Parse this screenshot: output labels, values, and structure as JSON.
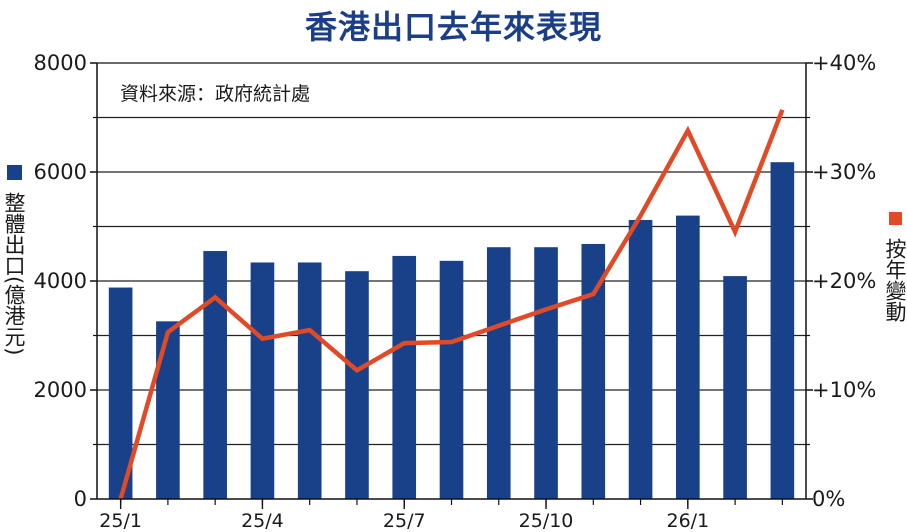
{
  "chart_data": {
    "type": "bar",
    "title": "香港出口去年來表現",
    "annotation": "資料來源：政府統計處",
    "left_axis_label": "整體出口(億港元)",
    "right_axis_label": "按年變動",
    "categories": [
      "25/1",
      "25/2",
      "25/3",
      "25/4",
      "25/5",
      "25/6",
      "25/7",
      "25/8",
      "25/9",
      "25/10",
      "25/11",
      "25/12",
      "26/1",
      "26/2",
      "26/3"
    ],
    "x_tick_labels": [
      "25/1",
      "25/4",
      "25/7",
      "25/10",
      "26/1"
    ],
    "series": [
      {
        "name": "整體出口(億港元)",
        "type": "bar",
        "axis": "left",
        "color": "#18418a",
        "values": [
          3880,
          3260,
          4550,
          4340,
          4340,
          4180,
          4460,
          4370,
          4620,
          4620,
          4680,
          5120,
          5200,
          4090,
          6180
        ]
      },
      {
        "name": "按年變動",
        "type": "line",
        "axis": "right",
        "color": "#e04a26",
        "values": [
          0.0,
          15.3,
          18.5,
          14.7,
          15.5,
          11.8,
          14.3,
          14.4,
          15.9,
          17.4,
          18.8,
          26.0,
          33.8,
          24.5,
          35.7
        ]
      }
    ],
    "left_axis": {
      "range": [
        0,
        8000
      ],
      "ticks": [
        "0",
        "2000",
        "4000",
        "6000",
        "8000"
      ]
    },
    "right_axis": {
      "range": [
        0,
        40
      ],
      "ticks": [
        "0%",
        "+10%",
        "+20%",
        "+30%",
        "+40%"
      ]
    },
    "grid": true
  }
}
